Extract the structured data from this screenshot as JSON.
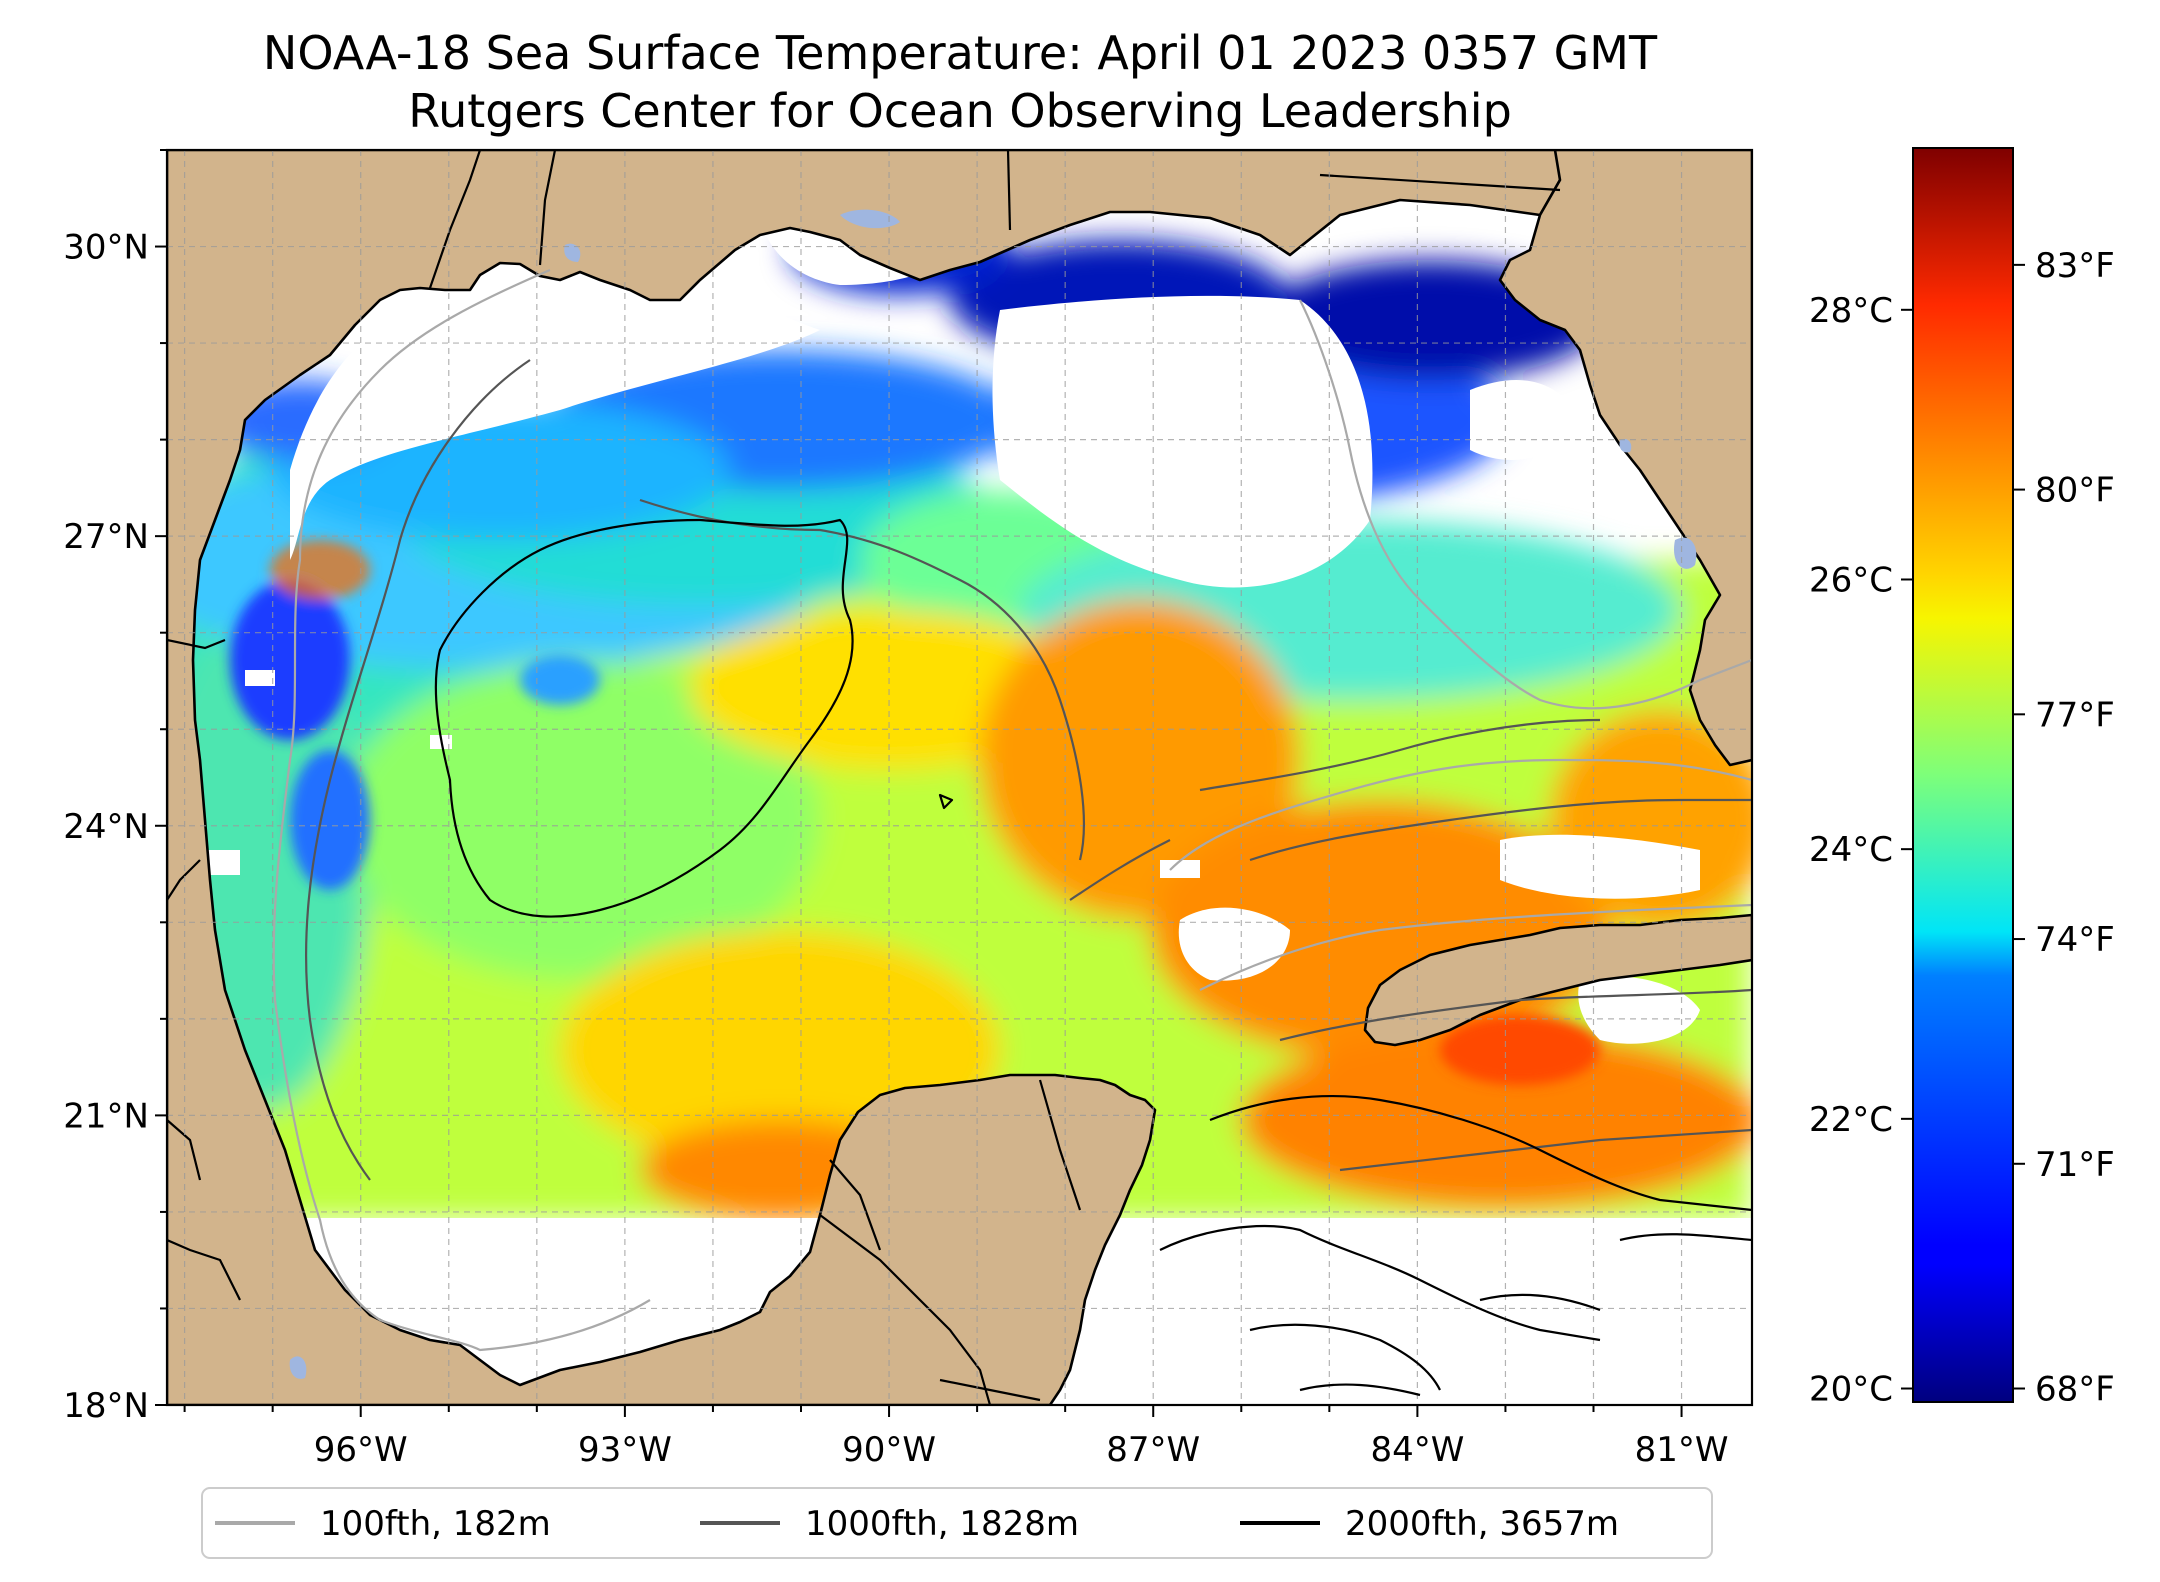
{
  "title": "NOAA-18 Sea Surface Temperature: April 01 2023 0357 GMT",
  "subtitle": "Rutgers Center for Ocean Observing Leadership",
  "map": {
    "lon_range": [
      -98.2,
      -80.2
    ],
    "lat_range": [
      18.0,
      31.0
    ],
    "lon_ticks": [
      {
        "value": -96,
        "label": "96°W"
      },
      {
        "value": -93,
        "label": "93°W"
      },
      {
        "value": -90,
        "label": "90°W"
      },
      {
        "value": -87,
        "label": "87°W"
      },
      {
        "value": -84,
        "label": "84°W"
      },
      {
        "value": -81,
        "label": "81°W"
      }
    ],
    "lat_ticks": [
      {
        "value": 18,
        "label": "18°N"
      },
      {
        "value": 21,
        "label": "21°N"
      },
      {
        "value": 24,
        "label": "24°N"
      },
      {
        "value": 27,
        "label": "27°N"
      },
      {
        "value": 30,
        "label": "30°N"
      }
    ],
    "grid": true,
    "colors": {
      "land": "#d2b48c",
      "no_data": "#ffffff",
      "lakes": "#9fb6e0",
      "coastline": "#000000"
    },
    "sst_field_lat_min": 20.0
  },
  "colorbar": {
    "colormap": "jet",
    "celsius_range": [
      19.9,
      29.2
    ],
    "celsius_ticks": [
      {
        "value": 20,
        "label": "20°C"
      },
      {
        "value": 22,
        "label": "22°C"
      },
      {
        "value": 24,
        "label": "24°C"
      },
      {
        "value": 26,
        "label": "26°C"
      },
      {
        "value": 28,
        "label": "28°C"
      }
    ],
    "fahrenheit_ticks": [
      {
        "value": 68,
        "label": "68°F"
      },
      {
        "value": 71,
        "label": "71°F"
      },
      {
        "value": 74,
        "label": "74°F"
      },
      {
        "value": 77,
        "label": "77°F"
      },
      {
        "value": 80,
        "label": "80°F"
      },
      {
        "value": 83,
        "label": "83°F"
      }
    ]
  },
  "legend": {
    "items": [
      {
        "label": "100fth, 182m",
        "color": "#a9a9a9"
      },
      {
        "label": "1000fth, 1828m",
        "color": "#555555"
      },
      {
        "label": "2000fth, 3657m",
        "color": "#000000"
      }
    ]
  }
}
